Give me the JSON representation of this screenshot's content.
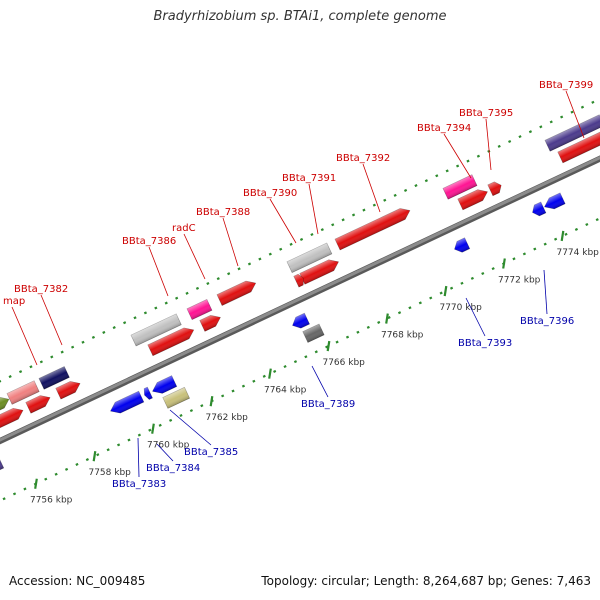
{
  "title": "Bradyrhizobium sp. BTAi1, complete genome",
  "footer": {
    "accession": "Accession: NC_009485",
    "summary": "Topology: circular; Length: 8,264,687 bp; Genes: 7,463"
  },
  "colors": {
    "forward_label": "#cc0000",
    "reverse_label": "#0000aa",
    "backbone": "#8c8c8c",
    "tick": "#2e8b2e"
  },
  "ticks": [
    {
      "label": "7756 kbp",
      "kbp": 7756
    },
    {
      "label": "7758 kbp",
      "kbp": 7758
    },
    {
      "label": "7760 kbp",
      "kbp": 7760
    },
    {
      "label": "7762 kbp",
      "kbp": 7762
    },
    {
      "label": "7764 kbp",
      "kbp": 7764
    },
    {
      "label": "7766 kbp",
      "kbp": 7766
    },
    {
      "label": "7768 kbp",
      "kbp": 7768
    },
    {
      "label": "7770 kbp",
      "kbp": 7770
    },
    {
      "label": "7772 kbp",
      "kbp": 7772
    },
    {
      "label": "7774 kbp",
      "kbp": 7774
    }
  ],
  "forward_labels": [
    "map",
    "BBta_7382",
    "BBta_7386",
    "radC",
    "BBta_7388",
    "BBta_7390",
    "BBta_7391",
    "BBta_7392",
    "BBta_7394",
    "BBta_7395",
    "BBta_7399"
  ],
  "reverse_labels": [
    "BBta_7383",
    "BBta_7384",
    "BBta_7385",
    "BBta_7389",
    "BBta_7393",
    "BBta_7396"
  ]
}
